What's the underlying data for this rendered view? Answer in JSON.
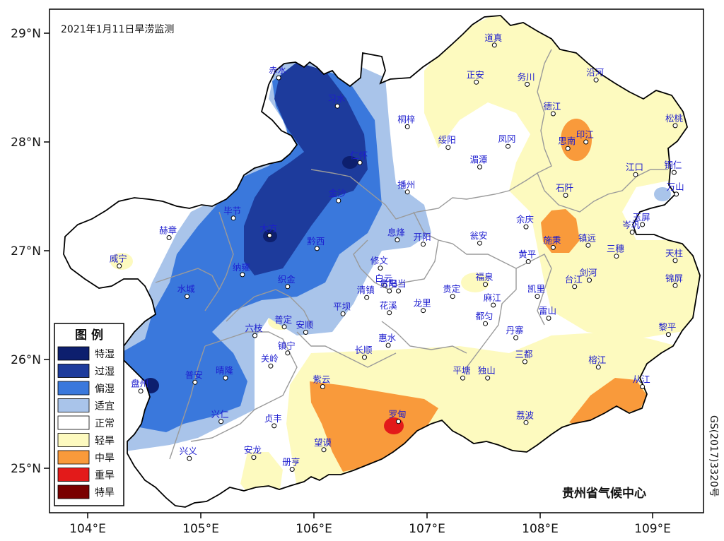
{
  "title": "2021年1月11日旱涝监测",
  "credit": "贵州省气候中心",
  "map_approval": "GS(2017)3320号",
  "axes": {
    "lat_ticks": [
      "29°N",
      "28°N",
      "27°N",
      "26°N",
      "25°N"
    ],
    "lon_ticks": [
      "104°E",
      "105°E",
      "106°E",
      "107°E",
      "108°E",
      "109°E"
    ]
  },
  "legend": {
    "title": "图  例",
    "items": [
      {
        "label": "特湿",
        "color": "#0d1f6e"
      },
      {
        "label": "过湿",
        "color": "#1d3b9c"
      },
      {
        "label": "偏湿",
        "color": "#3a78dc"
      },
      {
        "label": "适宜",
        "color": "#a9c4ea"
      },
      {
        "label": "正常",
        "color": "#ffffff"
      },
      {
        "label": "轻旱",
        "color": "#fdfabf"
      },
      {
        "label": "中旱",
        "color": "#f99a3b"
      },
      {
        "label": "重旱",
        "color": "#e31a1a"
      },
      {
        "label": "特旱",
        "color": "#7a0000"
      }
    ]
  },
  "stations": [
    {
      "name": "道真",
      "lon": 107.6,
      "lat": 28.89
    },
    {
      "name": "正安",
      "lon": 107.44,
      "lat": 28.55
    },
    {
      "name": "务川",
      "lon": 107.89,
      "lat": 28.53
    },
    {
      "name": "沿河",
      "lon": 108.5,
      "lat": 28.57
    },
    {
      "name": "赤水",
      "lon": 105.69,
      "lat": 28.59
    },
    {
      "name": "习水",
      "lon": 106.21,
      "lat": 28.33
    },
    {
      "name": "桐梓",
      "lon": 106.83,
      "lat": 28.14
    },
    {
      "name": "德江",
      "lon": 108.12,
      "lat": 28.26
    },
    {
      "name": "松桃",
      "lon": 109.2,
      "lat": 28.15
    },
    {
      "name": "绥阳",
      "lon": 107.19,
      "lat": 27.95
    },
    {
      "name": "凤冈",
      "lon": 107.72,
      "lat": 27.96
    },
    {
      "name": "印江",
      "lon": 108.41,
      "lat": 28.0
    },
    {
      "name": "思南",
      "lon": 108.25,
      "lat": 27.94
    },
    {
      "name": "仁怀",
      "lon": 106.41,
      "lat": 27.81
    },
    {
      "name": "湄潭",
      "lon": 107.47,
      "lat": 27.77
    },
    {
      "name": "江口",
      "lon": 108.85,
      "lat": 27.7
    },
    {
      "name": "铜仁",
      "lon": 109.19,
      "lat": 27.72
    },
    {
      "name": "播州",
      "lon": 106.83,
      "lat": 27.54
    },
    {
      "name": "石阡",
      "lon": 108.23,
      "lat": 27.51
    },
    {
      "name": "万山",
      "lon": 109.21,
      "lat": 27.52
    },
    {
      "name": "金沙",
      "lon": 106.22,
      "lat": 27.46
    },
    {
      "name": "毕节",
      "lon": 105.29,
      "lat": 27.3
    },
    {
      "name": "余庆",
      "lon": 107.88,
      "lat": 27.22
    },
    {
      "name": "玉屏",
      "lon": 108.91,
      "lat": 27.24
    },
    {
      "name": "赫章",
      "lon": 104.72,
      "lat": 27.12
    },
    {
      "name": "大方",
      "lon": 105.61,
      "lat": 27.14
    },
    {
      "name": "息烽",
      "lon": 106.74,
      "lat": 27.1
    },
    {
      "name": "开阳",
      "lon": 106.97,
      "lat": 27.06
    },
    {
      "name": "瓮安",
      "lon": 107.47,
      "lat": 27.07
    },
    {
      "name": "施秉",
      "lon": 108.12,
      "lat": 27.03
    },
    {
      "name": "镇远",
      "lon": 108.43,
      "lat": 27.05
    },
    {
      "name": "岑巩",
      "lon": 108.82,
      "lat": 27.17
    },
    {
      "name": "三穗",
      "lon": 108.68,
      "lat": 26.95
    },
    {
      "name": "威宁",
      "lon": 104.28,
      "lat": 26.86
    },
    {
      "name": "黔西",
      "lon": 106.03,
      "lat": 27.02
    },
    {
      "name": "黄平",
      "lon": 107.9,
      "lat": 26.9
    },
    {
      "name": "天柱",
      "lon": 109.2,
      "lat": 26.91
    },
    {
      "name": "修文",
      "lon": 106.59,
      "lat": 26.84
    },
    {
      "name": "纳雍",
      "lon": 105.37,
      "lat": 26.78
    },
    {
      "name": "织金",
      "lon": 105.77,
      "lat": 26.67
    },
    {
      "name": "福泉",
      "lon": 107.52,
      "lat": 26.69
    },
    {
      "name": "剑河",
      "lon": 108.44,
      "lat": 26.73
    },
    {
      "name": "台江",
      "lon": 108.31,
      "lat": 26.67
    },
    {
      "name": "白云",
      "lon": 106.63,
      "lat": 26.68
    },
    {
      "name": "乌当",
      "lon": 106.75,
      "lat": 26.63
    },
    {
      "name": "贵阳",
      "lon": 106.67,
      "lat": 26.63
    },
    {
      "name": "凯里",
      "lon": 107.98,
      "lat": 26.58
    },
    {
      "name": "水城",
      "lon": 104.88,
      "lat": 26.58
    },
    {
      "name": "清镇",
      "lon": 106.47,
      "lat": 26.57
    },
    {
      "name": "贵定",
      "lon": 107.23,
      "lat": 26.58
    },
    {
      "name": "麻江",
      "lon": 107.59,
      "lat": 26.5
    },
    {
      "name": "龙里",
      "lon": 106.97,
      "lat": 26.45
    },
    {
      "name": "锦屏",
      "lon": 109.2,
      "lat": 26.68
    },
    {
      "name": "花溪",
      "lon": 106.67,
      "lat": 26.43
    },
    {
      "name": "平坝",
      "lon": 106.26,
      "lat": 26.42
    },
    {
      "name": "雷山",
      "lon": 108.08,
      "lat": 26.38
    },
    {
      "name": "都匀",
      "lon": 107.52,
      "lat": 26.33
    },
    {
      "name": "普定",
      "lon": 105.74,
      "lat": 26.3
    },
    {
      "name": "安顺",
      "lon": 105.93,
      "lat": 26.25
    },
    {
      "name": "黎平",
      "lon": 109.14,
      "lat": 26.23
    },
    {
      "name": "六枝",
      "lon": 105.48,
      "lat": 26.22
    },
    {
      "name": "丹寨",
      "lon": 107.79,
      "lat": 26.2
    },
    {
      "name": "惠水",
      "lon": 106.66,
      "lat": 26.13
    },
    {
      "name": "镇宁",
      "lon": 105.77,
      "lat": 26.06
    },
    {
      "name": "长顺",
      "lon": 106.45,
      "lat": 26.02
    },
    {
      "name": "三都",
      "lon": 107.87,
      "lat": 25.98
    },
    {
      "name": "关岭",
      "lon": 105.62,
      "lat": 25.94
    },
    {
      "name": "榕江",
      "lon": 108.52,
      "lat": 25.93
    },
    {
      "name": "平塘",
      "lon": 107.32,
      "lat": 25.83
    },
    {
      "name": "独山",
      "lon": 107.54,
      "lat": 25.83
    },
    {
      "name": "晴隆",
      "lon": 105.22,
      "lat": 25.83
    },
    {
      "name": "普安",
      "lon": 104.95,
      "lat": 25.79
    },
    {
      "name": "紫云",
      "lon": 106.08,
      "lat": 25.75
    },
    {
      "name": "盘州",
      "lon": 104.47,
      "lat": 25.71
    },
    {
      "name": "从江",
      "lon": 108.91,
      "lat": 25.75
    },
    {
      "name": "兴仁",
      "lon": 105.18,
      "lat": 25.43
    },
    {
      "name": "罗甸",
      "lon": 106.75,
      "lat": 25.43
    },
    {
      "name": "荔波",
      "lon": 107.88,
      "lat": 25.42
    },
    {
      "name": "贞丰",
      "lon": 105.65,
      "lat": 25.39
    },
    {
      "name": "望谟",
      "lon": 106.09,
      "lat": 25.17
    },
    {
      "name": "安龙",
      "lon": 105.47,
      "lat": 25.1
    },
    {
      "name": "兴义",
      "lon": 104.9,
      "lat": 25.09
    },
    {
      "name": "册亨",
      "lon": 105.81,
      "lat": 24.99
    }
  ]
}
